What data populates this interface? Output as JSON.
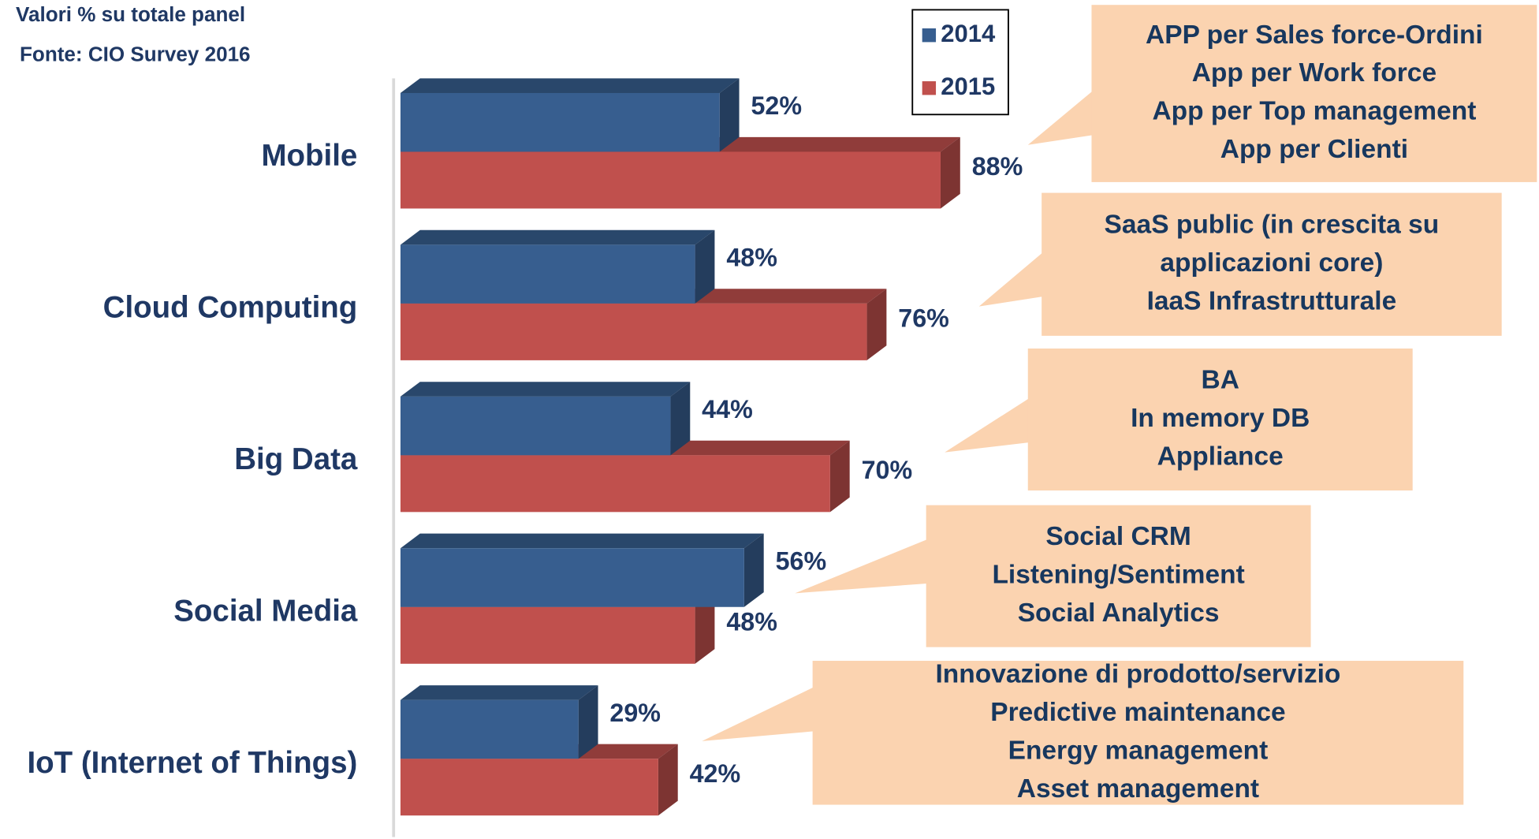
{
  "chart_data": {
    "type": "bar",
    "orientation": "horizontal",
    "subtitle": "Valori % su totale panel",
    "source": "Fonte: CIO Survey 2016",
    "categories": [
      "Mobile",
      "Cloud Computing",
      "Big Data",
      "Social Media",
      "IoT (Internet of Things)"
    ],
    "series": [
      {
        "name": "2014",
        "color": "#375e8f",
        "values": [
          52,
          48,
          44,
          56,
          29
        ],
        "value_labels": [
          "52%",
          "48%",
          "44%",
          "56%",
          "29%"
        ]
      },
      {
        "name": "2015",
        "color": "#c0504d",
        "values": [
          88,
          76,
          70,
          48,
          42
        ],
        "value_labels": [
          "88%",
          "76%",
          "70%",
          "48%",
          "42%"
        ]
      }
    ],
    "xlim": [
      0,
      100
    ],
    "legend": "top",
    "annotations": [
      {
        "lines": [
          "APP per Sales force-Ordini",
          "App per Work force",
          "App per Top management",
          "App per Clienti"
        ]
      },
      {
        "lines": [
          "SaaS public (in crescita su",
          "applicazioni core)",
          "IaaS Infrastrutturale"
        ]
      },
      {
        "lines": [
          "BA",
          "In memory DB",
          "Appliance"
        ]
      },
      {
        "lines": [
          "Social CRM",
          "Listening/Sentiment",
          "Social Analytics"
        ]
      },
      {
        "lines": [
          "Innovazione di prodotto/servizio",
          "Predictive maintenance",
          "Energy management",
          "Asset management"
        ]
      }
    ]
  }
}
